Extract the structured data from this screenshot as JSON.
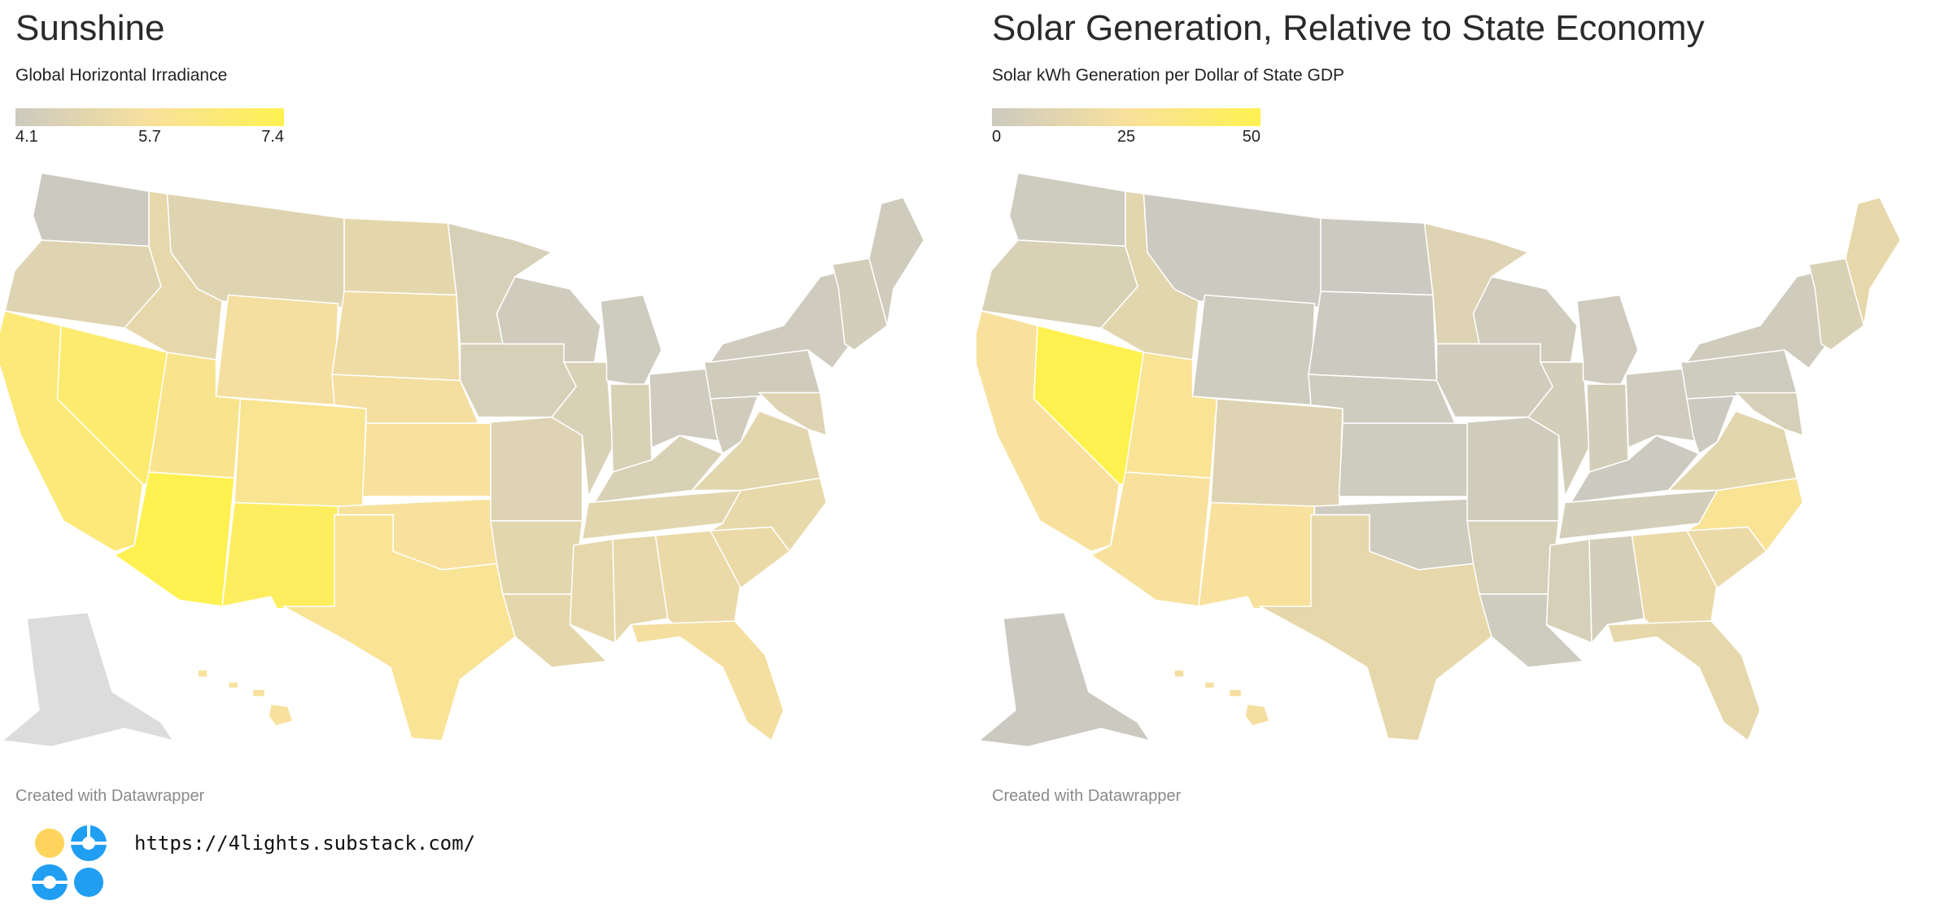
{
  "panels": [
    {
      "title": "Sunshine",
      "subtitle": "Global Horizontal Irradiance",
      "legend": {
        "min_label": "4.1",
        "mid_label": "5.7",
        "max_label": "7.4",
        "color_low": "#cccac0",
        "color_mid": "#f8e19d",
        "color_high": "#fff150"
      },
      "credit": "Created with Datawrapper",
      "state_levels": {
        "WA": 0.0,
        "OR": 0.22,
        "CA": 0.75,
        "NV": 0.8,
        "ID": 0.3,
        "MT": 0.22,
        "WY": 0.45,
        "UT": 0.6,
        "AZ": 1.0,
        "CO": 0.58,
        "NM": 0.9,
        "ND": 0.28,
        "SD": 0.4,
        "NE": 0.45,
        "KS": 0.5,
        "OK": 0.5,
        "TX": 0.55,
        "MN": 0.12,
        "IA": 0.12,
        "MO": 0.2,
        "AR": 0.25,
        "LA": 0.28,
        "WI": 0.05,
        "IL": 0.15,
        "MS": 0.3,
        "MI": 0.02,
        "IN": 0.15,
        "KY": 0.15,
        "TN": 0.25,
        "AL": 0.3,
        "OH": 0.03,
        "WV": 0.05,
        "GA": 0.35,
        "FL": 0.45,
        "SC": 0.35,
        "NC": 0.32,
        "VA": 0.25,
        "PA": 0.05,
        "NY": 0.03,
        "ME": 0.05,
        "NE_STATES": 0.08,
        "MDDE": 0.2,
        "AK": -1,
        "HI": 0.5
      }
    },
    {
      "title": "Solar Generation, Relative to State Economy",
      "subtitle": "Solar kWh Generation per Dollar of State GDP",
      "legend": {
        "min_label": "0",
        "mid_label": "25",
        "max_label": "50",
        "color_low": "#cccac0",
        "color_mid": "#f8e19d",
        "color_high": "#fff150"
      },
      "credit": "Created with Datawrapper",
      "state_levels": {
        "WA": 0.02,
        "OR": 0.15,
        "CA": 0.5,
        "NV": 1.0,
        "ID": 0.25,
        "MT": 0.0,
        "WY": 0.02,
        "UT": 0.55,
        "AZ": 0.5,
        "CO": 0.2,
        "NM": 0.5,
        "ND": 0.0,
        "SD": 0.0,
        "NE": 0.02,
        "KS": 0.02,
        "OK": 0.02,
        "TX": 0.3,
        "MN": 0.2,
        "IA": 0.05,
        "MO": 0.05,
        "AR": 0.12,
        "LA": 0.02,
        "WI": 0.05,
        "IL": 0.08,
        "MS": 0.12,
        "MI": 0.03,
        "IN": 0.08,
        "KY": 0.0,
        "TN": 0.08,
        "AL": 0.08,
        "OH": 0.03,
        "WV": 0.0,
        "GA": 0.35,
        "FL": 0.3,
        "SC": 0.35,
        "NC": 0.55,
        "VA": 0.25,
        "PA": 0.02,
        "NY": 0.05,
        "ME": 0.3,
        "NE_STATES": 0.15,
        "MDDE": 0.12,
        "AK": 0.0,
        "HI": 0.45
      }
    }
  ],
  "brand": {
    "url": "https://4lights.substack.com/",
    "yellow": "#ffd45c",
    "blue": "#1f9ef2"
  }
}
